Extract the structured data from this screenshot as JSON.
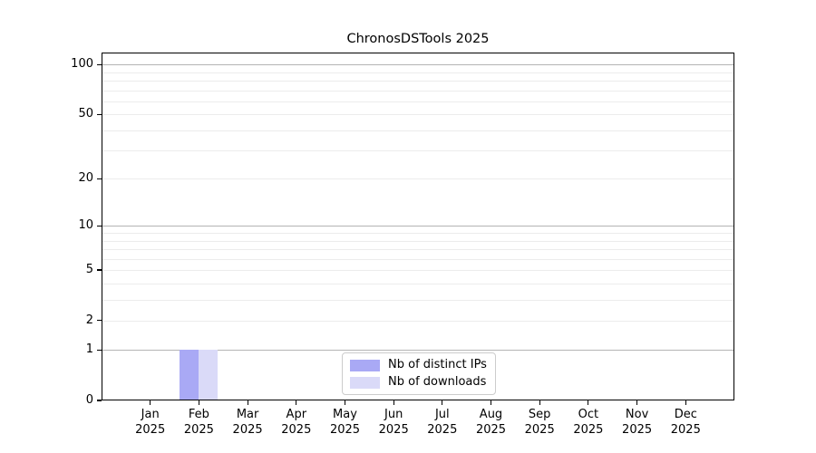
{
  "chart_data": {
    "type": "bar",
    "title": "ChronosDSTools 2025",
    "xlabel": "",
    "ylabel": "",
    "yscale": "log1p",
    "ylim": [
      0,
      118
    ],
    "yticks": [
      0,
      1,
      2,
      5,
      10,
      20,
      50,
      100
    ],
    "major_gridlines": [
      1,
      10,
      100
    ],
    "minor_gridlines": [
      2,
      3,
      4,
      5,
      6,
      7,
      8,
      9,
      20,
      30,
      40,
      50,
      60,
      70,
      80,
      90
    ],
    "grid": "horizontal",
    "legend_position": "lower center inside",
    "categories": [
      {
        "month": "Jan",
        "year": "2025"
      },
      {
        "month": "Feb",
        "year": "2025"
      },
      {
        "month": "Mar",
        "year": "2025"
      },
      {
        "month": "Apr",
        "year": "2025"
      },
      {
        "month": "May",
        "year": "2025"
      },
      {
        "month": "Jun",
        "year": "2025"
      },
      {
        "month": "Jul",
        "year": "2025"
      },
      {
        "month": "Aug",
        "year": "2025"
      },
      {
        "month": "Sep",
        "year": "2025"
      },
      {
        "month": "Oct",
        "year": "2025"
      },
      {
        "month": "Nov",
        "year": "2025"
      },
      {
        "month": "Dec",
        "year": "2025"
      }
    ],
    "series": [
      {
        "name": "Nb of distinct IPs",
        "color": "#a9a9f5",
        "values": [
          0,
          1,
          0,
          0,
          0,
          0,
          0,
          0,
          0,
          0,
          0,
          0
        ]
      },
      {
        "name": "Nb of downloads",
        "color": "#dadaf8",
        "values": [
          0,
          1,
          0,
          0,
          0,
          0,
          0,
          0,
          0,
          0,
          0,
          0
        ]
      }
    ],
    "colors": {
      "axis_border": "#000000",
      "major_grid": "#b4b4b4",
      "minor_grid": "#ececec",
      "background": "#ffffff"
    }
  }
}
